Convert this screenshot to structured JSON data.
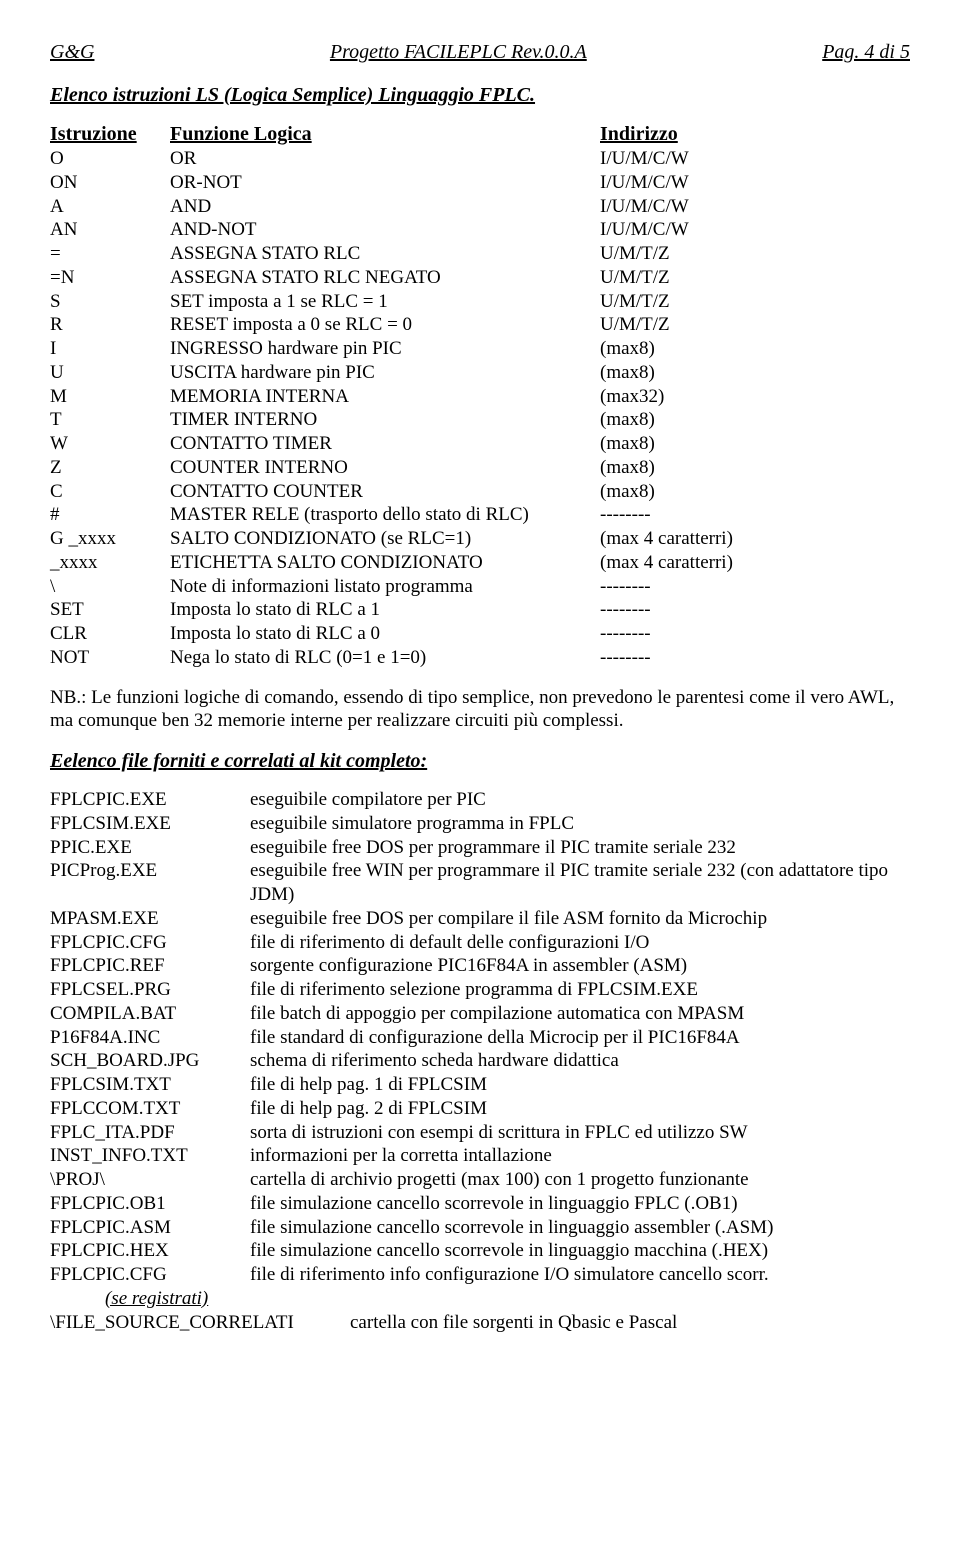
{
  "header": {
    "left": "G&G",
    "mid": "Progetto FACILEPLC  Rev.0.0.A",
    "right": "Pag. 4 di 5"
  },
  "section1_title": "Elenco istruzioni LS (Logica Semplice) Linguaggio FPLC.",
  "table_header": {
    "c1": "Istruzione",
    "c2": "Funzione Logica",
    "c3": "Indirizzo"
  },
  "instructions": [
    {
      "c1": "O",
      "c2": "OR",
      "c3": "I/U/M/C/W"
    },
    {
      "c1": "ON",
      "c2": "OR-NOT",
      "c3": "I/U/M/C/W"
    },
    {
      "c1": "A",
      "c2": "AND",
      "c3": "I/U/M/C/W"
    },
    {
      "c1": "AN",
      "c2": "AND-NOT",
      "c3": "I/U/M/C/W"
    },
    {
      "c1": "=",
      "c2": "ASSEGNA STATO RLC",
      "c3": "U/M/T/Z"
    },
    {
      "c1": "=N",
      "c2": "ASSEGNA STATO RLC NEGATO",
      "c3": "U/M/T/Z"
    },
    {
      "c1": "S",
      "c2": "SET imposta a 1 se RLC = 1",
      "c3": "U/M/T/Z"
    },
    {
      "c1": "R",
      "c2": "RESET imposta a 0 se RLC = 0",
      "c3": "U/M/T/Z"
    },
    {
      "c1": "I",
      "c2": "INGRESSO hardware pin PIC",
      "c3": "(max8)"
    },
    {
      "c1": "U",
      "c2": "USCITA hardware pin PIC",
      "c3": "(max8)"
    },
    {
      "c1": "M",
      "c2": "MEMORIA INTERNA",
      "c3": "(max32)"
    },
    {
      "c1": "T",
      "c2": "TIMER INTERNO",
      "c3": "(max8)"
    },
    {
      "c1": "W",
      "c2": "CONTATTO TIMER",
      "c3": "(max8)"
    },
    {
      "c1": "Z",
      "c2": "COUNTER INTERNO",
      "c3": "(max8)"
    },
    {
      "c1": "C",
      "c2": "CONTATTO COUNTER",
      "c3": "(max8)"
    },
    {
      "c1": "#",
      "c2": "MASTER RELE (trasporto dello stato di RLC)",
      "c3": "--------"
    },
    {
      "c1": "G _xxxx",
      "c2": "SALTO CONDIZIONATO (se RLC=1)",
      "c3": "(max 4 caratterri)"
    },
    {
      "c1": "_xxxx",
      "c2": "ETICHETTA SALTO CONDIZIONATO",
      "c3": "(max 4 caratterri)"
    },
    {
      "c1": "\\",
      "c2": "Note di informazioni listato programma",
      "c3": "--------"
    },
    {
      "c1": "SET",
      "c2": "Imposta lo stato di RLC a 1",
      "c3": "--------"
    },
    {
      "c1": "CLR",
      "c2": "Imposta lo stato di RLC a 0",
      "c3": "--------"
    },
    {
      "c1": "NOT",
      "c2": "Nega lo stato di RLC (0=1 e 1=0)",
      "c3": "--------"
    }
  ],
  "nb_text": "NB.: Le funzioni logiche di comando, essendo di tipo semplice, non prevedono le parentesi come il vero AWL, ma comunque ben 32 memorie interne per realizzare circuiti più complessi.",
  "section2_title": "Eelenco file forniti e correlati al kit completo:",
  "files": [
    {
      "c1": "FPLCPIC.EXE",
      "c2": "eseguibile compilatore per PIC"
    },
    {
      "c1": "FPLCSIM.EXE",
      "c2": "eseguibile simulatore programma in FPLC"
    },
    {
      "c1": "PPIC.EXE",
      "c2": "eseguibile free DOS per programmare il PIC tramite seriale 232"
    },
    {
      "c1": "PICProg.EXE",
      "c2": "eseguibile free WIN per programmare il PIC tramite seriale 232 (con adattatore tipo JDM)"
    },
    {
      "c1": "MPASM.EXE",
      "c2": "eseguibile free DOS per compilare il file ASM fornito da Microchip"
    },
    {
      "c1": "FPLCPIC.CFG",
      "c2": "file di riferimento di default delle configurazioni I/O"
    },
    {
      "c1": "FPLCPIC.REF",
      "c2": "sorgente configurazione PIC16F84A in assembler (ASM)"
    },
    {
      "c1": "FPLCSEL.PRG",
      "c2": "file di riferimento selezione programma di FPLCSIM.EXE"
    },
    {
      "c1": "COMPILA.BAT",
      "c2": "file batch di appoggio per compilazione automatica con MPASM"
    },
    {
      "c1": "P16F84A.INC",
      "c2": "file standard di configurazione della Microcip per il PIC16F84A"
    },
    {
      "c1": "SCH_BOARD.JPG",
      "c2": "schema di riferimento scheda hardware didattica"
    },
    {
      "c1": "FPLCSIM.TXT",
      "c2": "file di help pag. 1 di FPLCSIM"
    },
    {
      "c1": "FPLCCOM.TXT",
      "c2": "file di help pag. 2 di FPLCSIM"
    },
    {
      "c1": "FPLC_ITA.PDF",
      "c2": "sorta di istruzioni con esempi di scrittura in FPLC ed utilizzo SW"
    },
    {
      "c1": "INST_INFO.TXT",
      "c2": "informazioni per la corretta intallazione"
    },
    {
      "c1": "\\PROJ\\",
      "c2": "cartella di archivio progetti (max 100) con 1 progetto funzionante"
    },
    {
      "c1": "FPLCPIC.OB1",
      "c2": "file simulazione cancello scorrevole in linguaggio FPLC           (.OB1)"
    },
    {
      "c1": "FPLCPIC.ASM",
      "c2": "file simulazione cancello scorrevole in linguaggio assembler (.ASM)"
    },
    {
      "c1": "FPLCPIC.HEX",
      "c2": "file simulazione cancello scorrevole in linguaggio macchina (.HEX)"
    },
    {
      "c1": "FPLCPIC.CFG",
      "c2": "file di riferimento info configurazione I/O simulatore cancello scorr."
    }
  ],
  "se_registrati": "(se registrati)",
  "last_line": {
    "c1": "\\FILE_SOURCE_CORRELATI",
    "c2": "cartella con file sorgenti in Qbasic e Pascal"
  }
}
